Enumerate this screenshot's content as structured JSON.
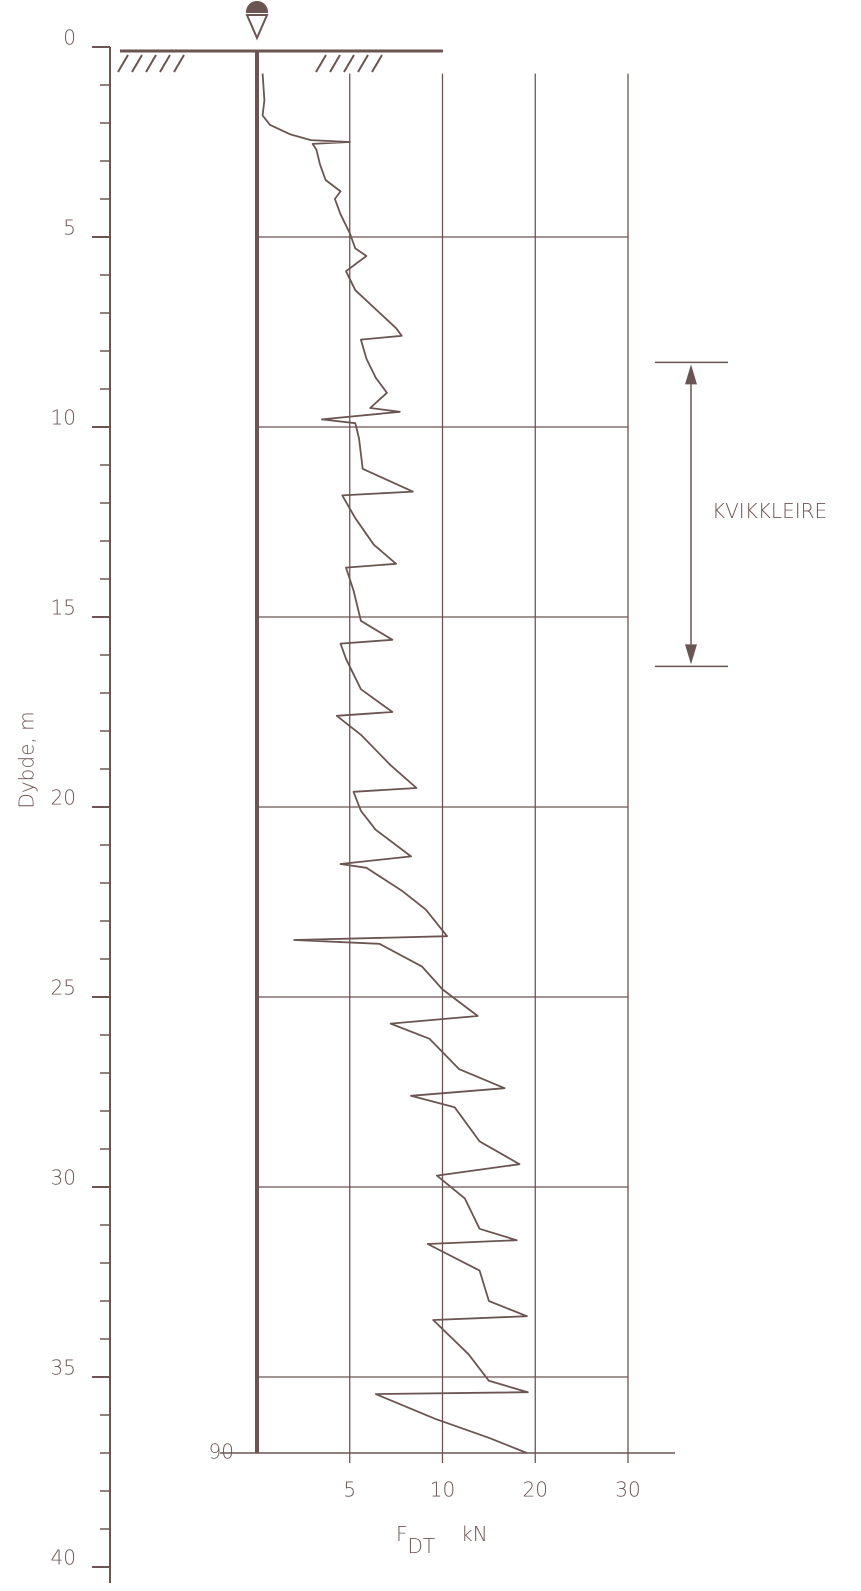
{
  "chart_data": {
    "type": "line",
    "ylabel": "Dybde, m",
    "xlabel": {
      "symbol": "F",
      "subscript": "DT",
      "unit": "kN"
    },
    "end_label": "90",
    "ylim": [
      0,
      40
    ],
    "yticks": [
      0,
      5,
      10,
      15,
      20,
      25,
      30,
      35,
      40
    ],
    "yticks_minor": [
      1,
      2,
      3,
      4,
      6,
      7,
      8,
      9,
      11,
      12,
      13,
      14,
      16,
      17,
      18,
      19,
      21,
      22,
      23,
      24,
      26,
      27,
      28,
      29,
      31,
      32,
      33,
      34,
      36,
      37,
      38,
      39
    ],
    "xlim": [
      0,
      30
    ],
    "xticks": [
      5,
      10,
      20,
      30
    ],
    "grid_y": [
      5,
      10,
      15,
      20,
      25,
      30,
      35
    ],
    "color": "#6b5552",
    "annotations": [
      {
        "text": "KVIKKLEIRE",
        "y_range": [
          8.3,
          16.3
        ]
      }
    ],
    "series": [
      {
        "name": "FDT",
        "color": "#6b5552",
        "x": [
          0.3,
          0.4,
          0.3,
          0.7,
          1.8,
          2.9,
          5.0,
          3.0,
          3.2,
          3.4,
          3.7,
          4.5,
          4.2,
          4.5,
          5.0,
          5.3,
          5.9,
          4.8,
          5.3,
          6.4,
          7.5,
          7.8,
          5.6,
          5.9,
          6.4,
          7.0,
          6.1,
          7.7,
          3.5,
          5.3,
          5.5,
          5.7,
          8.4,
          4.6,
          5.3,
          6.3,
          7.5,
          4.8,
          5.2,
          5.6,
          7.3,
          4.5,
          4.8,
          5.6,
          7.3,
          4.3,
          5.6,
          7.2,
          8.6,
          5.2,
          5.6,
          6.4,
          8.3,
          4.5,
          5.9,
          7.8,
          9.1,
          10.5,
          2.0,
          6.6,
          8.9,
          10.0,
          13.8,
          7.2,
          9.3,
          11.8,
          16.7,
          8.3,
          11.3,
          14.0,
          18.3,
          9.7,
          12.4,
          14.0,
          18.0,
          9.2,
          14.0,
          15.0,
          19.1,
          9.5,
          12.8,
          15.0,
          19.2,
          6.4,
          9.6,
          15.0,
          19.1
        ],
        "y": [
          0.7,
          1.4,
          1.8,
          2.05,
          2.3,
          2.45,
          2.5,
          2.55,
          2.7,
          3.1,
          3.5,
          3.8,
          4.0,
          4.4,
          4.9,
          5.3,
          5.5,
          5.9,
          6.4,
          6.9,
          7.4,
          7.6,
          7.7,
          8.2,
          8.7,
          9.1,
          9.5,
          9.6,
          9.8,
          9.9,
          10.3,
          11.1,
          11.7,
          11.8,
          12.4,
          13.1,
          13.6,
          13.7,
          14.3,
          15.1,
          15.6,
          15.7,
          16.1,
          16.9,
          17.5,
          17.6,
          18.1,
          18.9,
          19.5,
          19.6,
          20.1,
          20.6,
          21.3,
          21.5,
          21.6,
          22.2,
          22.7,
          23.4,
          23.5,
          23.6,
          24.2,
          24.8,
          25.5,
          25.7,
          26.1,
          26.9,
          27.4,
          27.6,
          27.9,
          28.8,
          29.4,
          29.7,
          30.3,
          31.1,
          31.4,
          31.5,
          32.2,
          33.0,
          33.4,
          33.5,
          34.4,
          35.1,
          35.4,
          35.45,
          36.1,
          36.6,
          37.0
        ]
      }
    ]
  }
}
